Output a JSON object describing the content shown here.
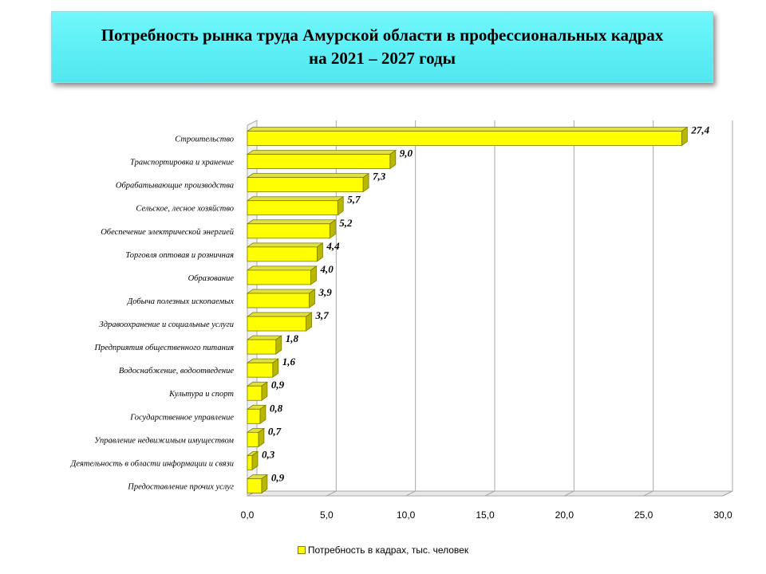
{
  "title": "Потребность рынка труда Амурской области в профессиональных кадрах\nна 2021 – 2027 годы",
  "colors": {
    "bar_face": "#ffff00",
    "bar_side": "#b8b800",
    "bar_top": "#e0e040",
    "bar_edge": "#7a7a00",
    "grid": "#a8a8a8"
  },
  "chart_data": {
    "type": "bar",
    "orientation": "horizontal",
    "title": "Потребность рынка труда Амурской области в профессиональных кадрах на 2021 – 2027 годы",
    "categories": [
      "Строительство",
      "Транспортировка и хранение",
      "Обрабатывающие производства",
      "Сельское,  лесное хозяйство",
      "Обеспечение электрической энергией",
      "Торговля оптовая и розничная",
      "Образование",
      "Добыча  полезных  ископаемых",
      "Здравоохранение и социальные услуги",
      "Предприятия общественного  питания",
      "Водоснабжение, водоотведение",
      "Культура   и  спорт",
      "Государственное  управление",
      "Управление недвижимым имуществом",
      "Деятельность  в области информации и связи",
      "Предоставление  прочих услуг"
    ],
    "values": [
      27.4,
      9.0,
      7.3,
      5.7,
      5.2,
      4.4,
      4.0,
      3.9,
      3.7,
      1.8,
      1.6,
      0.9,
      0.8,
      0.7,
      0.3,
      0.9
    ],
    "value_labels": [
      "27,4",
      "9,0",
      "7,3",
      "5,7",
      "5,2",
      "4,4",
      "4,0",
      "3,9",
      "3,7",
      "1,8",
      "1,6",
      "0,9",
      "0,8",
      "0,7",
      "0,3",
      "0,9"
    ],
    "xlim": [
      0,
      30
    ],
    "xticks": [
      0,
      5,
      10,
      15,
      20,
      25,
      30
    ],
    "xtick_labels": [
      "0,0",
      "5,0",
      "10,0",
      "15,0",
      "20,0",
      "25,0",
      "30,0"
    ],
    "grid": true,
    "legend": {
      "position": "bottom",
      "entries": [
        "Потребность в кадрах,  тыс. человек"
      ]
    }
  }
}
